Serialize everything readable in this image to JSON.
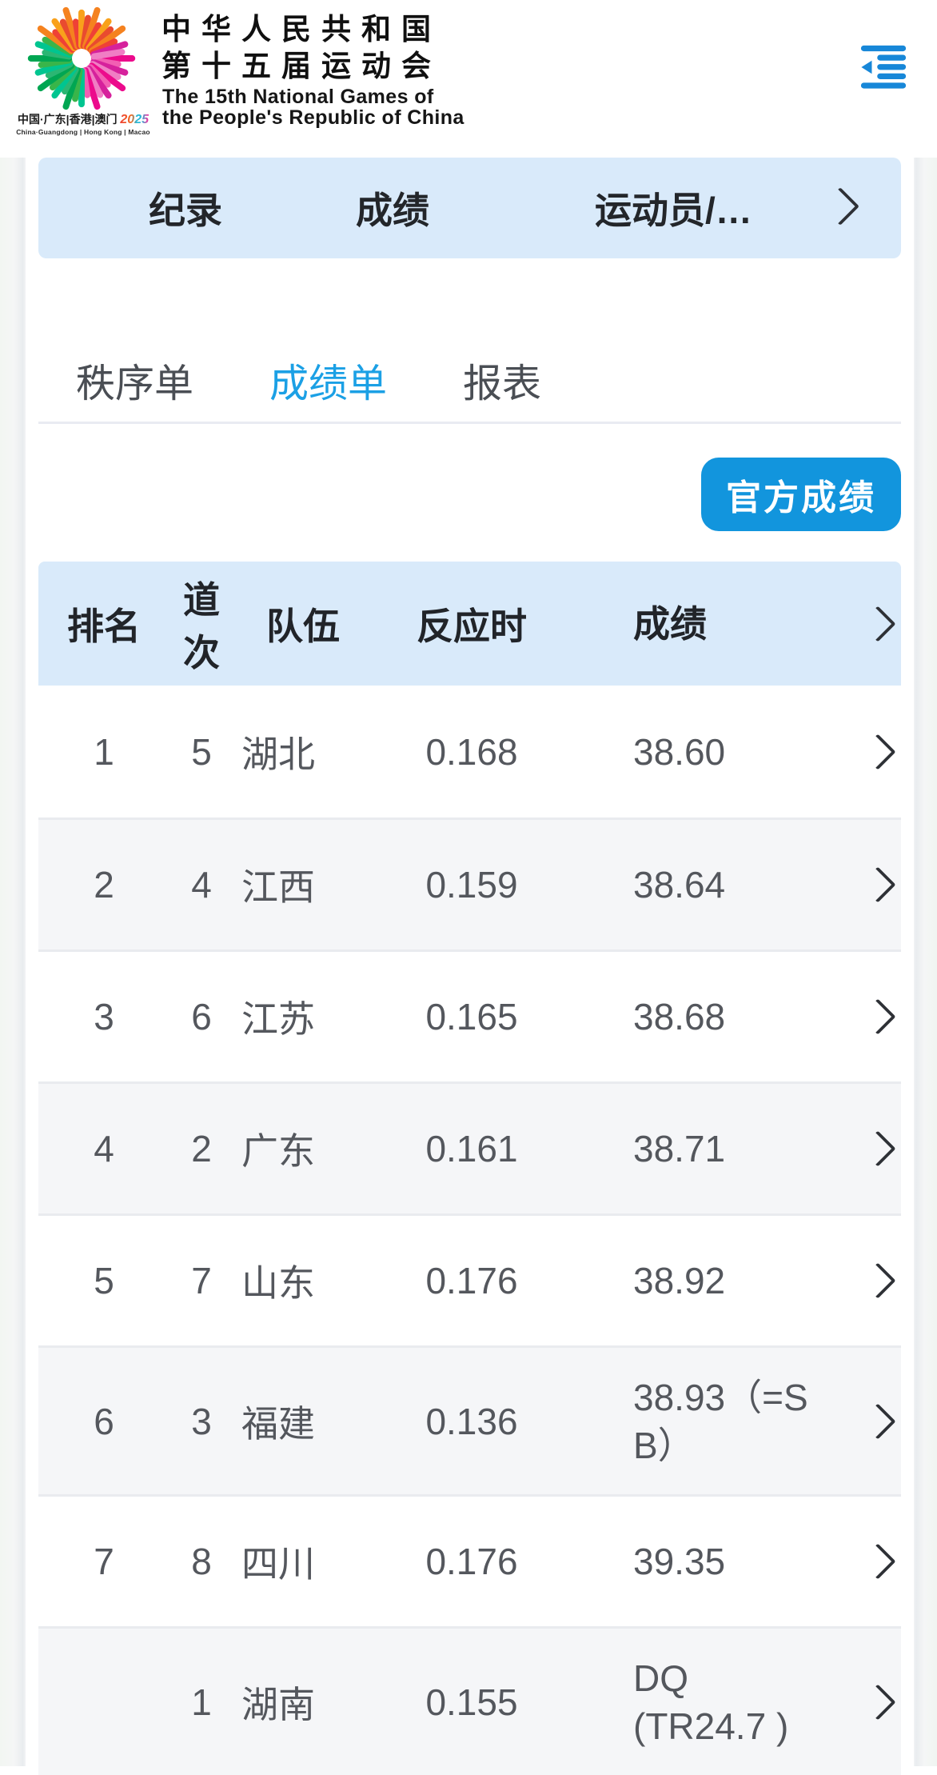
{
  "header": {
    "title_cn_line1": "中华人民共和国",
    "title_cn_line2": "第十五届运动会",
    "title_en_line1": "The 15th National Games of",
    "title_en_line2": "the People's Republic of China",
    "logo_tagline_cn": "中国·广东|香港|澳门",
    "logo_tagline_year": "2025",
    "logo_tagline_en": "China·Guangdong | Hong Kong | Macao"
  },
  "record_bar": {
    "items": [
      "纪录",
      "成绩",
      "运动员/…"
    ]
  },
  "tabs": {
    "items": [
      {
        "label": "秩序单",
        "active": false
      },
      {
        "label": "成绩单",
        "active": true
      },
      {
        "label": "报表",
        "active": false
      }
    ]
  },
  "actions": {
    "official_results_label": "官方成绩"
  },
  "results_table": {
    "columns": {
      "rank": "排名",
      "lane": "道次",
      "team": "队伍",
      "reaction": "反应时",
      "result": "成绩"
    },
    "rows": [
      {
        "rank": "1",
        "lane": "5",
        "team": "湖北",
        "reaction": "0.168",
        "result": "38.60"
      },
      {
        "rank": "2",
        "lane": "4",
        "team": "江西",
        "reaction": "0.159",
        "result": "38.64"
      },
      {
        "rank": "3",
        "lane": "6",
        "team": "江苏",
        "reaction": "0.165",
        "result": "38.68"
      },
      {
        "rank": "4",
        "lane": "2",
        "team": "广东",
        "reaction": "0.161",
        "result": "38.71"
      },
      {
        "rank": "5",
        "lane": "7",
        "team": "山东",
        "reaction": "0.176",
        "result": "38.92"
      },
      {
        "rank": "6",
        "lane": "3",
        "team": "福建",
        "reaction": "0.136",
        "result": "38.93（=S\nB）"
      },
      {
        "rank": "7",
        "lane": "8",
        "team": "四川",
        "reaction": "0.176",
        "result": "39.35"
      },
      {
        "rank": "",
        "lane": "1",
        "team": "湖南",
        "reaction": "0.155",
        "result": "DQ\n(TR24.7 )"
      }
    ]
  },
  "colors": {
    "brand_blue": "#1295dd",
    "active_tab_blue": "#1ba0e5",
    "menu_icon_blue": "#1787d8",
    "light_blue_bar": "#d9eafa",
    "alt_row_gray": "#f5f6f8",
    "table_text": "#54575d"
  }
}
